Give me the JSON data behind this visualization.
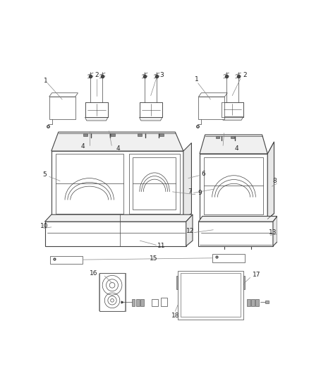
{
  "bg_color": "#ffffff",
  "lc": "#444444",
  "lc_light": "#888888",
  "lw": 0.8,
  "lw_thin": 0.5,
  "lw_leader": 0.5,
  "font_size": 6.5,
  "font_color": "#222222"
}
